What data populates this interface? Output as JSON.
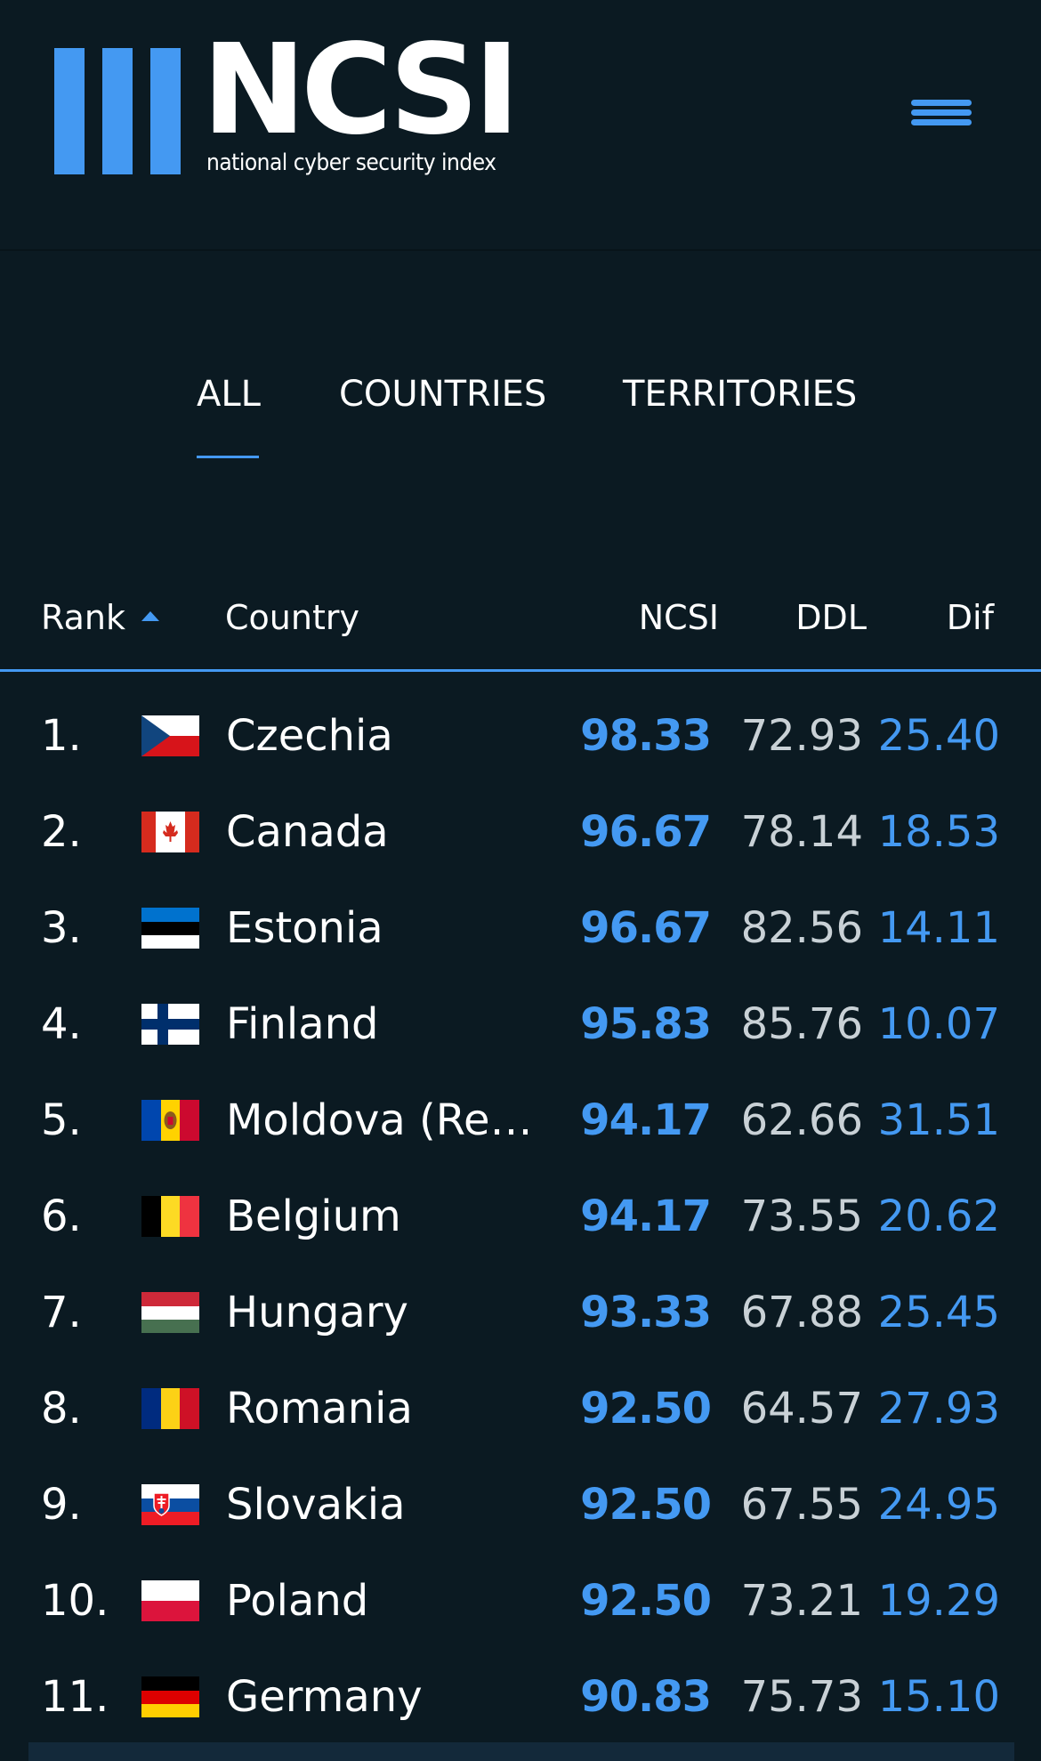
{
  "header": {
    "logo_text": "NCSI",
    "logo_subtitle": "national cyber security index",
    "menu_icon": "hamburger-menu-icon"
  },
  "tabs": [
    {
      "label": "ALL",
      "active": true
    },
    {
      "label": "COUNTRIES",
      "active": false
    },
    {
      "label": "TERRITORIES",
      "active": false
    }
  ],
  "table": {
    "columns": {
      "rank": "Rank",
      "country": "Country",
      "ncsi": "NCSI",
      "ddl": "DDL",
      "dif": "Dif"
    },
    "sort": {
      "column": "rank",
      "direction": "ascending"
    },
    "rows": [
      {
        "rank": "1.",
        "country": "Czechia",
        "flag": "czechia-flag-icon",
        "ncsi": "98.33",
        "ddl": "72.93",
        "dif": "25.40"
      },
      {
        "rank": "2.",
        "country": "Canada",
        "flag": "canada-flag-icon",
        "ncsi": "96.67",
        "ddl": "78.14",
        "dif": "18.53"
      },
      {
        "rank": "3.",
        "country": "Estonia",
        "flag": "estonia-flag-icon",
        "ncsi": "96.67",
        "ddl": "82.56",
        "dif": "14.11"
      },
      {
        "rank": "4.",
        "country": "Finland",
        "flag": "finland-flag-icon",
        "ncsi": "95.83",
        "ddl": "85.76",
        "dif": "10.07"
      },
      {
        "rank": "5.",
        "country": "Moldova (Repu...",
        "flag": "moldova-flag-icon",
        "ncsi": "94.17",
        "ddl": "62.66",
        "dif": "31.51"
      },
      {
        "rank": "6.",
        "country": "Belgium",
        "flag": "belgium-flag-icon",
        "ncsi": "94.17",
        "ddl": "73.55",
        "dif": "20.62"
      },
      {
        "rank": "7.",
        "country": "Hungary",
        "flag": "hungary-flag-icon",
        "ncsi": "93.33",
        "ddl": "67.88",
        "dif": "25.45"
      },
      {
        "rank": "8.",
        "country": "Romania",
        "flag": "romania-flag-icon",
        "ncsi": "92.50",
        "ddl": "64.57",
        "dif": "27.93"
      },
      {
        "rank": "9.",
        "country": "Slovakia",
        "flag": "slovakia-flag-icon",
        "ncsi": "92.50",
        "ddl": "67.55",
        "dif": "24.95"
      },
      {
        "rank": "10.",
        "country": "Poland",
        "flag": "poland-flag-icon",
        "ncsi": "92.50",
        "ddl": "73.21",
        "dif": "19.29"
      },
      {
        "rank": "11.",
        "country": "Germany",
        "flag": "germany-flag-icon",
        "ncsi": "90.83",
        "ddl": "75.73",
        "dif": "15.10"
      }
    ]
  },
  "colors": {
    "background": "#0b1a22",
    "accent": "#4499f2",
    "text": "#ffffff",
    "muted_text": "#c9d1d6"
  }
}
